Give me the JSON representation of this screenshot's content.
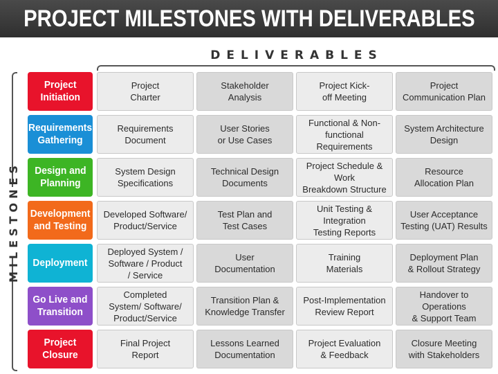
{
  "title": "PROJECT MILESTONES WITH DELIVERABLES",
  "deliverables_label": "DELIVERABLES",
  "milestones_label": "MILESTONES",
  "colors": {
    "project_initiation": "#e8132b",
    "requirements_gathering": "#1a8fd6",
    "design_and_planning": "#3db524",
    "development_and_testing": "#f26a1b",
    "deployment": "#0fb3d4",
    "go_live_and_transition": "#8e4fc9",
    "project_closure": "#e8132b"
  },
  "rows": [
    {
      "milestone": "Project\nInitiation",
      "deliverables": [
        "Project\nCharter",
        "Stakeholder\nAnalysis",
        "Project Kick-\noff Meeting",
        "Project\nCommunication Plan"
      ]
    },
    {
      "milestone": "Requirements\nGathering",
      "deliverables": [
        "Requirements\nDocument",
        "User Stories\nor Use Cases",
        "Functional & Non-\nfunctional Requirements",
        "System Architecture\nDesign"
      ]
    },
    {
      "milestone": "Design and\nPlanning",
      "deliverables": [
        "System Design\nSpecifications",
        "Technical Design\nDocuments",
        "Project Schedule & Work\nBreakdown Structure",
        "Resource\nAllocation Plan"
      ]
    },
    {
      "milestone": "Development\nand Testing",
      "deliverables": [
        "Developed Software/\nProduct/Service",
        "Test Plan and\nTest Cases",
        "Unit Testing & Integration\nTesting Reports",
        "User Acceptance\nTesting (UAT) Results"
      ]
    },
    {
      "milestone": "Deployment",
      "deliverables": [
        "Deployed System /\nSoftware / Product\n/ Service",
        "User\nDocumentation",
        "Training\nMaterials",
        "Deployment Plan\n& Rollout Strategy"
      ]
    },
    {
      "milestone": "Go Live and\nTransition",
      "deliverables": [
        "Completed\nSystem/ Software/\nProduct/Service",
        "Transition Plan &\nKnowledge Transfer",
        "Post-Implementation\nReview Report",
        "Handover to Operations\n& Support Team"
      ]
    },
    {
      "milestone": "Project\nClosure",
      "deliverables": [
        "Final Project\nReport",
        "Lessons Learned\nDocumentation",
        "Project Evaluation\n& Feedback",
        "Closure Meeting\nwith Stakeholders"
      ]
    }
  ]
}
